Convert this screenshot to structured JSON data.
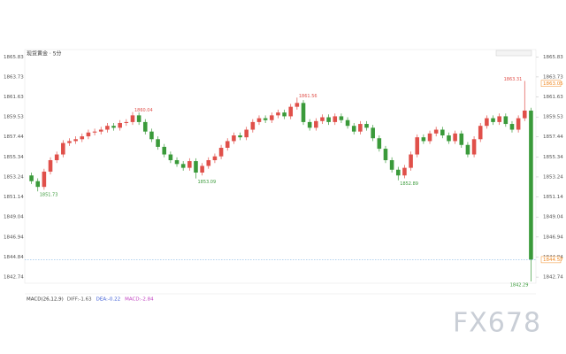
{
  "chart_data": {
    "type": "candlestick",
    "title": "现货黄金 · 5分",
    "up_color": "#e0504a",
    "down_color": "#3a9a3a",
    "accent_color": "#f08a24",
    "line_color": "#6aa6e0",
    "ylim": [
      1842.1,
      1866.6
    ],
    "yticks": [
      1842.74,
      1844.84,
      1846.94,
      1849.04,
      1851.14,
      1853.24,
      1855.34,
      1857.44,
      1859.53,
      1861.63,
      1863.73,
      1865.83
    ],
    "open": [
      1853.4,
      1852.8,
      1852.2,
      1853.8,
      1855.0,
      1855.6,
      1856.8,
      1857.0,
      1857.2,
      1857.5,
      1857.9,
      1858.0,
      1858.2,
      1858.6,
      1858.4,
      1858.9,
      1859.0,
      1859.7,
      1859.0,
      1858.0,
      1857.2,
      1856.4,
      1855.6,
      1855.0,
      1854.6,
      1854.2,
      1854.9,
      1853.7,
      1854.4,
      1855.0,
      1855.4,
      1856.3,
      1857.0,
      1857.6,
      1857.4,
      1858.2,
      1859.0,
      1859.4,
      1859.2,
      1859.7,
      1860.0,
      1859.6,
      1860.6,
      1861.0,
      1859.0,
      1858.4,
      1859.1,
      1859.5,
      1859.0,
      1859.6,
      1859.2,
      1858.6,
      1858.0,
      1858.8,
      1858.4,
      1857.3,
      1856.2,
      1855.0,
      1854.0,
      1853.4,
      1854.2,
      1855.6,
      1857.4,
      1857.0,
      1857.8,
      1858.2,
      1857.6,
      1857.0,
      1857.8,
      1856.6,
      1855.6,
      1857.2,
      1858.6,
      1859.4,
      1859.0,
      1859.6,
      1858.8,
      1858.2,
      1859.4,
      1860.2
    ],
    "high": [
      1853.7,
      1853.1,
      1854.1,
      1855.3,
      1855.9,
      1857.1,
      1857.3,
      1857.5,
      1857.8,
      1858.2,
      1858.3,
      1858.5,
      1858.9,
      1858.9,
      1859.2,
      1859.3,
      1860.04,
      1860.0,
      1859.3,
      1858.3,
      1857.5,
      1856.7,
      1855.9,
      1855.3,
      1854.9,
      1855.2,
      1855.2,
      1854.7,
      1855.3,
      1855.7,
      1856.6,
      1857.3,
      1857.9,
      1857.9,
      1858.5,
      1859.3,
      1859.7,
      1859.7,
      1860.0,
      1860.3,
      1860.3,
      1860.9,
      1861.56,
      1861.3,
      1859.3,
      1859.4,
      1859.8,
      1859.8,
      1859.9,
      1859.9,
      1859.5,
      1858.9,
      1859.1,
      1859.1,
      1858.7,
      1857.6,
      1856.5,
      1855.3,
      1854.3,
      1854.5,
      1855.9,
      1857.7,
      1857.7,
      1858.1,
      1858.5,
      1858.5,
      1857.9,
      1858.1,
      1858.1,
      1856.9,
      1857.5,
      1858.9,
      1859.7,
      1859.7,
      1859.9,
      1859.9,
      1859.1,
      1859.7,
      1863.31,
      1860.5
    ],
    "low": [
      1852.5,
      1851.73,
      1851.9,
      1853.5,
      1854.7,
      1855.3,
      1856.5,
      1856.7,
      1856.9,
      1857.2,
      1857.6,
      1857.7,
      1857.9,
      1858.1,
      1858.1,
      1858.6,
      1858.7,
      1858.7,
      1857.7,
      1856.9,
      1856.1,
      1855.3,
      1854.7,
      1854.3,
      1853.9,
      1853.9,
      1853.09,
      1853.4,
      1854.1,
      1854.7,
      1855.1,
      1856.0,
      1856.7,
      1857.1,
      1857.1,
      1857.9,
      1858.7,
      1858.9,
      1858.9,
      1859.4,
      1859.3,
      1859.3,
      1860.3,
      1858.7,
      1858.1,
      1858.1,
      1858.8,
      1858.7,
      1858.7,
      1858.9,
      1858.3,
      1857.7,
      1857.7,
      1858.1,
      1857.0,
      1855.9,
      1854.7,
      1853.7,
      1852.89,
      1853.1,
      1853.9,
      1855.3,
      1856.7,
      1856.7,
      1857.5,
      1857.3,
      1856.7,
      1856.7,
      1856.3,
      1855.3,
      1855.3,
      1856.9,
      1858.3,
      1858.7,
      1858.7,
      1858.5,
      1857.9,
      1857.9,
      1859.1,
      1842.29
    ],
    "close": [
      1852.8,
      1852.2,
      1853.8,
      1855.0,
      1855.6,
      1856.8,
      1857.0,
      1857.2,
      1857.5,
      1857.9,
      1858.0,
      1858.2,
      1858.6,
      1858.4,
      1858.9,
      1859.0,
      1859.7,
      1859.0,
      1858.0,
      1857.2,
      1856.4,
      1855.6,
      1855.0,
      1854.6,
      1854.2,
      1854.9,
      1853.7,
      1854.4,
      1855.0,
      1855.4,
      1856.3,
      1857.0,
      1857.6,
      1857.4,
      1858.2,
      1859.0,
      1859.4,
      1859.2,
      1859.7,
      1860.0,
      1859.6,
      1860.6,
      1861.0,
      1859.0,
      1858.4,
      1859.1,
      1859.5,
      1859.0,
      1859.6,
      1859.2,
      1858.6,
      1858.0,
      1858.8,
      1858.4,
      1857.3,
      1856.2,
      1855.0,
      1854.0,
      1853.4,
      1854.2,
      1855.6,
      1857.4,
      1857.0,
      1857.8,
      1858.2,
      1857.6,
      1857.0,
      1857.8,
      1856.6,
      1855.6,
      1857.2,
      1858.6,
      1859.4,
      1859.0,
      1859.6,
      1858.8,
      1858.2,
      1859.4,
      1860.2,
      1844.57
    ],
    "reference_price": 1863.05,
    "indicator": {
      "name": "MACD(26,12,9)",
      "items": [
        {
          "text": "DIFF:-1.63",
          "color": "#555555"
        },
        {
          "text": "DEA:-0.22",
          "color": "#3b5bd6"
        },
        {
          "text": "MACD:-2.84",
          "color": "#c040c0"
        }
      ]
    },
    "watermark": "FX678"
  }
}
